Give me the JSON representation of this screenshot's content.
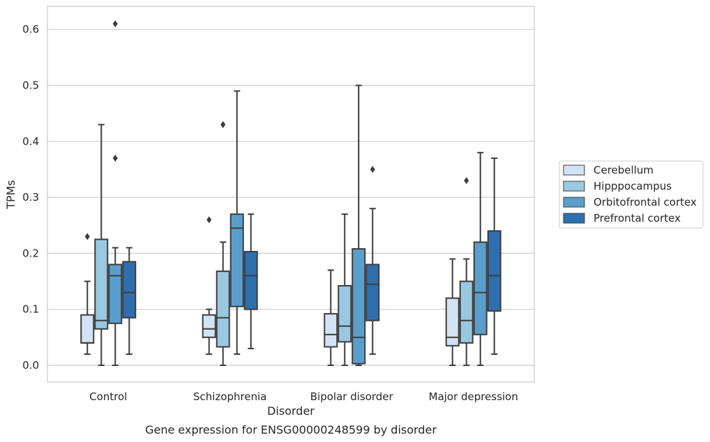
{
  "chart_data": {
    "type": "box",
    "title": "Gene expression for ENSG00000248599 by disorder",
    "xlabel": "Disorder",
    "ylabel": "TPMs",
    "ylim": [
      -0.03,
      0.64
    ],
    "yticks": [
      "0.0",
      "0.1",
      "0.2",
      "0.3",
      "0.4",
      "0.5",
      "0.6"
    ],
    "grid": true,
    "legend_position": "right",
    "categories": [
      "Control",
      "Schizophrenia",
      "Bipolar disorder",
      "Major depression"
    ],
    "series": [
      {
        "name": "Cerebellum",
        "color": "#d2e3f3",
        "boxes": [
          {
            "low": 0.02,
            "q1": 0.04,
            "median": 0.04,
            "q3": 0.09,
            "high": 0.15,
            "outliers": [
              0.23
            ]
          },
          {
            "low": 0.02,
            "q1": 0.05,
            "median": 0.065,
            "q3": 0.09,
            "high": 0.1,
            "outliers": [
              0.26
            ]
          },
          {
            "low": 0.0,
            "q1": 0.033,
            "median": 0.055,
            "q3": 0.092,
            "high": 0.17,
            "outliers": []
          },
          {
            "low": 0.0,
            "q1": 0.035,
            "median": 0.05,
            "q3": 0.12,
            "high": 0.19,
            "outliers": []
          }
        ]
      },
      {
        "name": "Hipppocampus",
        "color": "#9ac8e0",
        "boxes": [
          {
            "low": 0.0,
            "q1": 0.065,
            "median": 0.08,
            "q3": 0.225,
            "high": 0.43,
            "outliers": []
          },
          {
            "low": 0.0,
            "q1": 0.033,
            "median": 0.085,
            "q3": 0.168,
            "high": 0.22,
            "outliers": [
              0.43
            ]
          },
          {
            "low": 0.0,
            "q1": 0.042,
            "median": 0.07,
            "q3": 0.142,
            "high": 0.27,
            "outliers": []
          },
          {
            "low": 0.0,
            "q1": 0.04,
            "median": 0.08,
            "q3": 0.15,
            "high": 0.19,
            "outliers": [
              0.33
            ]
          }
        ]
      },
      {
        "name": "Orbitofrontal cortex",
        "color": "#5a9fcc",
        "boxes": [
          {
            "low": 0.0,
            "q1": 0.075,
            "median": 0.16,
            "q3": 0.18,
            "high": 0.21,
            "outliers": [
              0.37,
              0.61
            ]
          },
          {
            "low": 0.02,
            "q1": 0.105,
            "median": 0.245,
            "q3": 0.27,
            "high": 0.49,
            "outliers": []
          },
          {
            "low": 0.0,
            "q1": 0.003,
            "median": 0.05,
            "q3": 0.208,
            "high": 0.5,
            "outliers": []
          },
          {
            "low": 0.0,
            "q1": 0.055,
            "median": 0.13,
            "q3": 0.22,
            "high": 0.38,
            "outliers": []
          }
        ]
      },
      {
        "name": "Prefrontal cortex",
        "color": "#2d6faf",
        "boxes": [
          {
            "low": 0.02,
            "q1": 0.085,
            "median": 0.13,
            "q3": 0.185,
            "high": 0.21,
            "outliers": []
          },
          {
            "low": 0.03,
            "q1": 0.1,
            "median": 0.16,
            "q3": 0.203,
            "high": 0.27,
            "outliers": []
          },
          {
            "low": 0.02,
            "q1": 0.08,
            "median": 0.145,
            "q3": 0.18,
            "high": 0.28,
            "outliers": [
              0.35
            ]
          },
          {
            "low": 0.02,
            "q1": 0.097,
            "median": 0.16,
            "q3": 0.24,
            "high": 0.37,
            "outliers": []
          }
        ]
      }
    ]
  }
}
